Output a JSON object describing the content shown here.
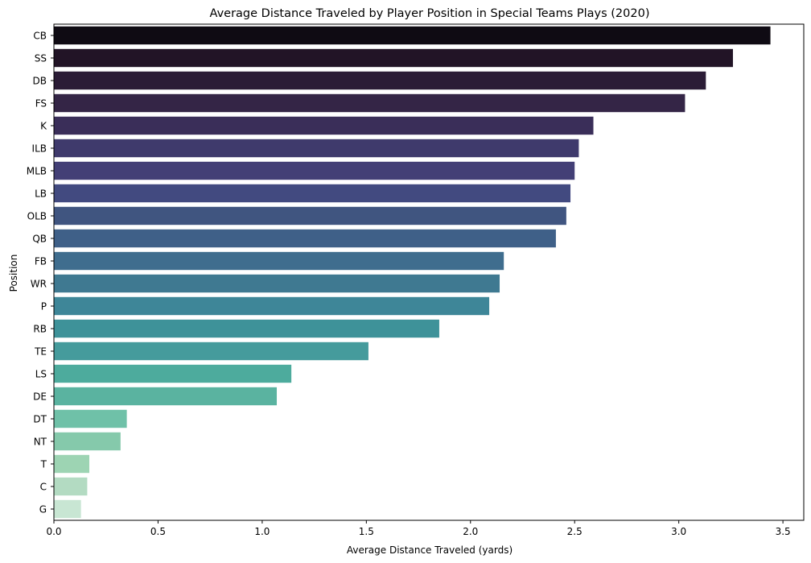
{
  "chart_data": {
    "type": "bar",
    "orientation": "horizontal",
    "title": "Average Distance Traveled by Player Position in Special Teams Plays (2020)",
    "xlabel": "Average Distance Traveled (yards)",
    "ylabel": "Position",
    "xlim": [
      0,
      3.6
    ],
    "xticks": [
      0.0,
      0.5,
      1.0,
      1.5,
      2.0,
      2.5,
      3.0,
      3.5
    ],
    "xtick_labels": [
      "0.0",
      "0.5",
      "1.0",
      "1.5",
      "2.0",
      "2.5",
      "3.0",
      "3.5"
    ],
    "grid": false,
    "categories": [
      "CB",
      "SS",
      "DB",
      "FS",
      "K",
      "ILB",
      "MLB",
      "LB",
      "OLB",
      "QB",
      "FB",
      "WR",
      "P",
      "RB",
      "TE",
      "LS",
      "DE",
      "DT",
      "NT",
      "T",
      "C",
      "G"
    ],
    "values": [
      3.44,
      3.26,
      3.13,
      3.03,
      2.59,
      2.52,
      2.5,
      2.48,
      2.46,
      2.41,
      2.16,
      2.14,
      2.09,
      1.85,
      1.51,
      1.14,
      1.07,
      0.35,
      0.32,
      0.17,
      0.16,
      0.13
    ],
    "colors": [
      "#0f0b13",
      "#221426",
      "#2b1c36",
      "#342546",
      "#3a2e59",
      "#3f3a6c",
      "#433f76",
      "#424a80",
      "#405580",
      "#3f6088",
      "#3f6d8e",
      "#3f7991",
      "#3e8698",
      "#3e9299",
      "#459b9c",
      "#4dab9d",
      "#5ab3a0",
      "#6fc1a8",
      "#85c9ab",
      "#9dd4b3",
      "#b3dbc2",
      "#c8e6d3"
    ]
  }
}
